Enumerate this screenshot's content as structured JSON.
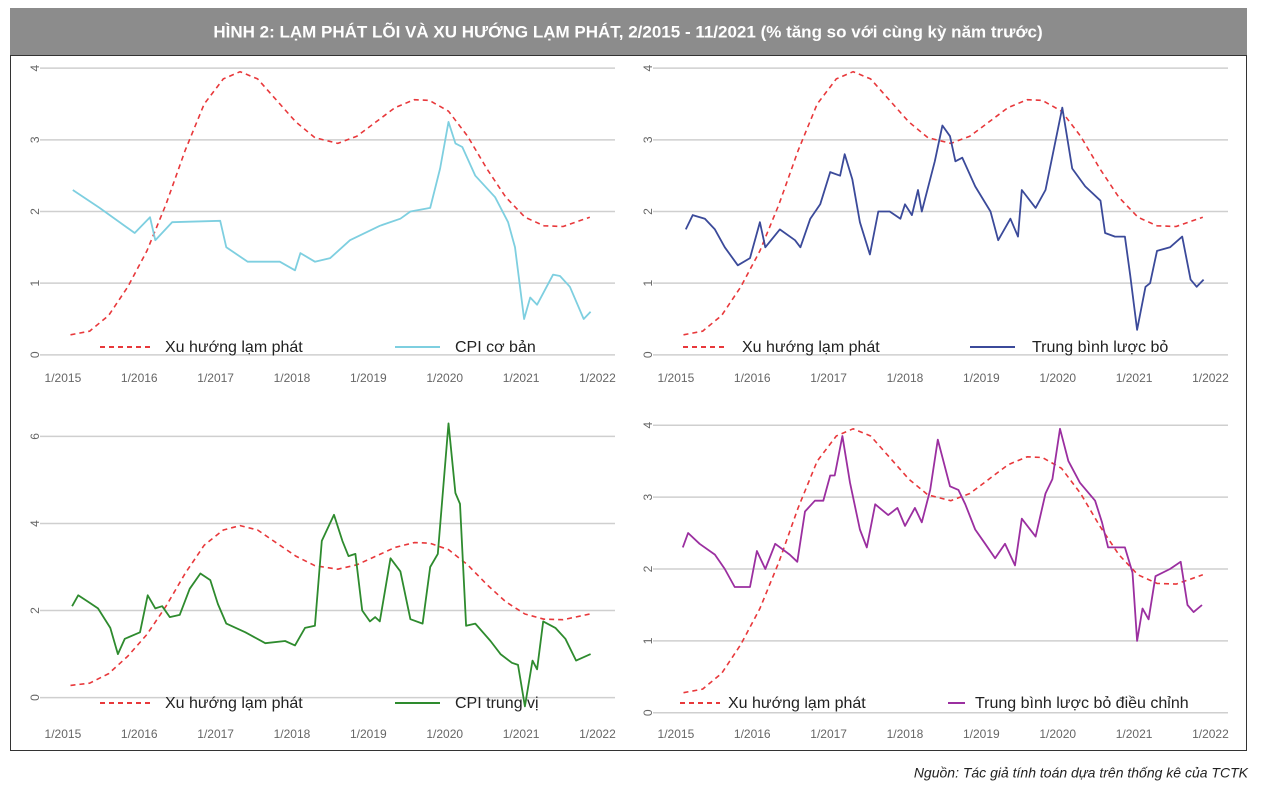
{
  "title": "HÌNH 2: LẠM PHÁT LÕI VÀ XU HƯỚNG LẠM PHÁT, 2/2015 - 11/2021 (% tăng so với cùng kỳ năm trước)",
  "source": "Nguồn: Tác giả tính toán dựa trên thống kê của TCTK",
  "chart_data": [
    {
      "type": "line",
      "legend": "lower center",
      "grid": true,
      "xlim": [
        2014.7,
        2022.23
      ],
      "xticks": [
        {
          "value": 2015,
          "label": "1/2015"
        },
        {
          "value": 2016,
          "label": "1/2016"
        },
        {
          "value": 2017,
          "label": "1/2017"
        },
        {
          "value": 2018,
          "label": "1/2018"
        },
        {
          "value": 2019,
          "label": "1/2019"
        },
        {
          "value": 2020,
          "label": "1/2020"
        },
        {
          "value": 2021,
          "label": "1/2021"
        },
        {
          "value": 2022,
          "label": "1/2022"
        }
      ],
      "ylim": [
        -0.1,
        4.1
      ],
      "yticks": [
        0,
        1,
        2,
        3,
        4
      ],
      "series": [
        {
          "name": "Xu hướng lạm phát",
          "color": "#e8383b",
          "dashed": true,
          "x": [
            2015.1,
            2015.35,
            2015.6,
            2015.85,
            2016.1,
            2016.35,
            2016.6,
            2016.85,
            2017.1,
            2017.32,
            2017.55,
            2017.8,
            2018.05,
            2018.3,
            2018.6,
            2018.85,
            2019.1,
            2019.35,
            2019.6,
            2019.8,
            2020.05,
            2020.3,
            2020.55,
            2020.8,
            2021.05,
            2021.3,
            2021.55,
            2021.9
          ],
          "values": [
            0.28,
            0.33,
            0.55,
            0.95,
            1.45,
            2.1,
            2.85,
            3.5,
            3.85,
            3.95,
            3.85,
            3.55,
            3.25,
            3.03,
            2.95,
            3.05,
            3.25,
            3.45,
            3.56,
            3.55,
            3.4,
            3.05,
            2.6,
            2.2,
            1.92,
            1.8,
            1.79,
            1.92
          ]
        },
        {
          "name": "CPI cơ bản",
          "color": "#7ecfe0",
          "dashed": false,
          "x": [
            2015.13,
            2015.48,
            2015.94,
            2016.14,
            2016.21,
            2016.43,
            2017.06,
            2017.14,
            2017.42,
            2017.84,
            2018.04,
            2018.11,
            2018.3,
            2018.5,
            2018.76,
            2019.15,
            2019.42,
            2019.55,
            2019.81,
            2019.94,
            2020.05,
            2020.14,
            2020.23,
            2020.4,
            2020.66,
            2020.83,
            2020.92,
            2021.04,
            2021.12,
            2021.21,
            2021.42,
            2021.51,
            2021.64,
            2021.82,
            2021.91
          ],
          "values": [
            2.3,
            2.05,
            1.7,
            1.92,
            1.6,
            1.85,
            1.87,
            1.5,
            1.3,
            1.3,
            1.18,
            1.42,
            1.3,
            1.35,
            1.6,
            1.8,
            1.9,
            2.0,
            2.05,
            2.6,
            3.25,
            2.95,
            2.9,
            2.5,
            2.2,
            1.85,
            1.5,
            0.5,
            0.8,
            0.7,
            1.12,
            1.1,
            0.95,
            0.5,
            0.6
          ]
        }
      ]
    },
    {
      "type": "line",
      "legend": "lower center",
      "grid": true,
      "xlim": [
        2014.7,
        2022.23
      ],
      "xticks": [
        {
          "value": 2015,
          "label": "1/2015"
        },
        {
          "value": 2016,
          "label": "1/2016"
        },
        {
          "value": 2017,
          "label": "1/2017"
        },
        {
          "value": 2018,
          "label": "1/2018"
        },
        {
          "value": 2019,
          "label": "1/2019"
        },
        {
          "value": 2020,
          "label": "1/2020"
        },
        {
          "value": 2021,
          "label": "1/2021"
        },
        {
          "value": 2022,
          "label": "1/2022"
        }
      ],
      "ylim": [
        -0.1,
        4.1
      ],
      "yticks": [
        0,
        1,
        2,
        3,
        4
      ],
      "series": [
        {
          "name": "Xu hướng lạm phát",
          "color": "#e8383b",
          "dashed": true,
          "x": [
            2015.1,
            2015.35,
            2015.6,
            2015.85,
            2016.1,
            2016.35,
            2016.6,
            2016.85,
            2017.1,
            2017.32,
            2017.55,
            2017.8,
            2018.05,
            2018.3,
            2018.6,
            2018.85,
            2019.1,
            2019.35,
            2019.6,
            2019.8,
            2020.05,
            2020.3,
            2020.55,
            2020.8,
            2021.05,
            2021.3,
            2021.55,
            2021.9
          ],
          "values": [
            0.28,
            0.33,
            0.55,
            0.95,
            1.45,
            2.1,
            2.85,
            3.5,
            3.85,
            3.95,
            3.85,
            3.55,
            3.25,
            3.03,
            2.95,
            3.05,
            3.25,
            3.45,
            3.56,
            3.55,
            3.4,
            3.05,
            2.6,
            2.2,
            1.92,
            1.8,
            1.79,
            1.92
          ]
        },
        {
          "name": "Trung bình lược bỏ",
          "color": "#3b4a9a",
          "dashed": false,
          "x": [
            2015.13,
            2015.22,
            2015.38,
            2015.51,
            2015.64,
            2015.81,
            2015.97,
            2016.1,
            2016.17,
            2016.36,
            2016.56,
            2016.63,
            2016.76,
            2016.89,
            2017.02,
            2017.15,
            2017.21,
            2017.31,
            2017.41,
            2017.54,
            2017.65,
            2017.8,
            2017.94,
            2018.0,
            2018.09,
            2018.17,
            2018.22,
            2018.39,
            2018.49,
            2018.59,
            2018.66,
            2018.75,
            2018.92,
            2019.12,
            2019.22,
            2019.38,
            2019.48,
            2019.53,
            2019.71,
            2019.84,
            2020.06,
            2020.19,
            2020.36,
            2020.56,
            2020.62,
            2020.75,
            2020.88,
            2020.95,
            2021.04,
            2021.15,
            2021.21,
            2021.3,
            2021.47,
            2021.63,
            2021.74,
            2021.82,
            2021.91
          ],
          "values": [
            1.75,
            1.95,
            1.9,
            1.75,
            1.5,
            1.25,
            1.35,
            1.85,
            1.5,
            1.75,
            1.6,
            1.5,
            1.9,
            2.1,
            2.55,
            2.5,
            2.8,
            2.45,
            1.85,
            1.4,
            2.0,
            2.0,
            1.9,
            2.1,
            1.95,
            2.3,
            2.0,
            2.7,
            3.2,
            3.05,
            2.7,
            2.75,
            2.35,
            2.0,
            1.6,
            1.9,
            1.65,
            2.3,
            2.05,
            2.3,
            3.45,
            2.6,
            2.35,
            2.15,
            1.7,
            1.65,
            1.65,
            1.1,
            0.35,
            0.95,
            1.0,
            1.45,
            1.5,
            1.65,
            1.05,
            0.95,
            1.05
          ]
        }
      ]
    },
    {
      "type": "line",
      "legend": "lower center",
      "grid": true,
      "xlim": [
        2014.7,
        2022.23
      ],
      "xticks": [
        {
          "value": 2015,
          "label": "1/2015"
        },
        {
          "value": 2016,
          "label": "1/2016"
        },
        {
          "value": 2017,
          "label": "1/2017"
        },
        {
          "value": 2018,
          "label": "1/2018"
        },
        {
          "value": 2019,
          "label": "1/2019"
        },
        {
          "value": 2020,
          "label": "1/2020"
        },
        {
          "value": 2021,
          "label": "1/2021"
        },
        {
          "value": 2022,
          "label": "1/2022"
        }
      ],
      "ylim": [
        -0.4,
        6.4
      ],
      "yticks": [
        0,
        2,
        4,
        6
      ],
      "series": [
        {
          "name": "Xu hướng lạm phát",
          "color": "#e8383b",
          "dashed": true,
          "x": [
            2015.1,
            2015.35,
            2015.6,
            2015.85,
            2016.1,
            2016.35,
            2016.6,
            2016.85,
            2017.1,
            2017.32,
            2017.55,
            2017.8,
            2018.05,
            2018.3,
            2018.6,
            2018.85,
            2019.1,
            2019.35,
            2019.6,
            2019.8,
            2020.05,
            2020.3,
            2020.55,
            2020.8,
            2021.05,
            2021.3,
            2021.55,
            2021.9
          ],
          "values": [
            0.28,
            0.33,
            0.55,
            0.95,
            1.45,
            2.1,
            2.85,
            3.5,
            3.85,
            3.95,
            3.85,
            3.55,
            3.25,
            3.03,
            2.95,
            3.05,
            3.25,
            3.45,
            3.56,
            3.55,
            3.4,
            3.05,
            2.6,
            2.2,
            1.92,
            1.8,
            1.79,
            1.92
          ]
        },
        {
          "name": "CPI trung vị",
          "color": "#2e8b2e",
          "dashed": false,
          "x": [
            2015.12,
            2015.2,
            2015.33,
            2015.46,
            2015.62,
            2015.72,
            2015.81,
            2016.01,
            2016.11,
            2016.21,
            2016.3,
            2016.4,
            2016.53,
            2016.66,
            2016.8,
            2016.93,
            2017.03,
            2017.14,
            2017.39,
            2017.65,
            2017.91,
            2018.04,
            2018.17,
            2018.3,
            2018.39,
            2018.55,
            2018.66,
            2018.74,
            2018.83,
            2018.92,
            2019.02,
            2019.09,
            2019.15,
            2019.29,
            2019.42,
            2019.55,
            2019.71,
            2019.81,
            2019.91,
            2020.05,
            2020.14,
            2020.2,
            2020.28,
            2020.4,
            2020.6,
            2020.73,
            2020.88,
            2020.96,
            2021.05,
            2021.15,
            2021.21,
            2021.29,
            2021.45,
            2021.58,
            2021.72,
            2021.91
          ],
          "values": [
            2.1,
            2.35,
            2.2,
            2.05,
            1.6,
            1.0,
            1.35,
            1.5,
            2.35,
            2.05,
            2.1,
            1.85,
            1.9,
            2.5,
            2.85,
            2.7,
            2.15,
            1.7,
            1.5,
            1.25,
            1.3,
            1.2,
            1.6,
            1.65,
            3.6,
            4.2,
            3.6,
            3.25,
            3.3,
            2.0,
            1.75,
            1.85,
            1.75,
            3.2,
            2.9,
            1.8,
            1.7,
            3.0,
            3.3,
            6.3,
            4.7,
            4.45,
            1.65,
            1.7,
            1.3,
            1.0,
            0.8,
            0.75,
            -0.2,
            0.85,
            0.65,
            1.75,
            1.6,
            1.35,
            0.85,
            1.0
          ]
        }
      ]
    },
    {
      "type": "line",
      "legend": "lower center",
      "grid": true,
      "xlim": [
        2014.7,
        2022.23
      ],
      "xticks": [
        {
          "value": 2015,
          "label": "1/2015"
        },
        {
          "value": 2016,
          "label": "1/2016"
        },
        {
          "value": 2017,
          "label": "1/2017"
        },
        {
          "value": 2018,
          "label": "1/2018"
        },
        {
          "value": 2019,
          "label": "1/2019"
        },
        {
          "value": 2020,
          "label": "1/2020"
        },
        {
          "value": 2021,
          "label": "1/2021"
        },
        {
          "value": 2022,
          "label": "1/2022"
        }
      ],
      "ylim": [
        -0.1,
        4.1
      ],
      "yticks": [
        0,
        1,
        2,
        3,
        4
      ],
      "series": [
        {
          "name": "Xu hướng lạm phát",
          "color": "#e8383b",
          "dashed": true,
          "x": [
            2015.1,
            2015.35,
            2015.6,
            2015.85,
            2016.1,
            2016.35,
            2016.6,
            2016.85,
            2017.1,
            2017.32,
            2017.55,
            2017.8,
            2018.05,
            2018.3,
            2018.6,
            2018.85,
            2019.1,
            2019.35,
            2019.6,
            2019.8,
            2020.05,
            2020.3,
            2020.55,
            2020.8,
            2021.05,
            2021.3,
            2021.55,
            2021.9
          ],
          "values": [
            0.28,
            0.33,
            0.55,
            0.95,
            1.45,
            2.1,
            2.85,
            3.5,
            3.85,
            3.95,
            3.85,
            3.55,
            3.25,
            3.03,
            2.95,
            3.05,
            3.25,
            3.45,
            3.56,
            3.55,
            3.4,
            3.05,
            2.6,
            2.2,
            1.92,
            1.8,
            1.79,
            1.92
          ]
        },
        {
          "name": "Trung bình lược bỏ điều chỉnh",
          "color": "#9b2fa0",
          "dashed": false,
          "x": [
            2015.09,
            2015.16,
            2015.31,
            2015.51,
            2015.64,
            2015.77,
            2015.97,
            2016.06,
            2016.17,
            2016.3,
            2016.49,
            2016.59,
            2016.69,
            2016.82,
            2016.93,
            2017.02,
            2017.08,
            2017.18,
            2017.28,
            2017.41,
            2017.5,
            2017.61,
            2017.78,
            2017.9,
            2018.0,
            2018.13,
            2018.22,
            2018.33,
            2018.43,
            2018.59,
            2018.7,
            2018.79,
            2018.92,
            2019.05,
            2019.18,
            2019.31,
            2019.44,
            2019.53,
            2019.71,
            2019.84,
            2019.93,
            2020.03,
            2020.14,
            2020.29,
            2020.49,
            2020.58,
            2020.66,
            2020.75,
            2020.88,
            2020.98,
            2021.04,
            2021.11,
            2021.19,
            2021.28,
            2021.47,
            2021.61,
            2021.7,
            2021.78,
            2021.89
          ],
          "values": [
            2.3,
            2.5,
            2.35,
            2.2,
            2.0,
            1.75,
            1.75,
            2.25,
            2.0,
            2.35,
            2.2,
            2.1,
            2.8,
            2.95,
            2.95,
            3.3,
            3.3,
            3.85,
            3.2,
            2.55,
            2.3,
            2.9,
            2.75,
            2.85,
            2.6,
            2.85,
            2.65,
            3.1,
            3.8,
            3.15,
            3.1,
            2.9,
            2.55,
            2.35,
            2.15,
            2.35,
            2.05,
            2.7,
            2.45,
            3.05,
            3.25,
            3.95,
            3.5,
            3.2,
            2.95,
            2.65,
            2.3,
            2.3,
            2.3,
            1.95,
            1.0,
            1.45,
            1.3,
            1.9,
            2.0,
            2.1,
            1.5,
            1.4,
            1.5
          ]
        }
      ]
    }
  ]
}
